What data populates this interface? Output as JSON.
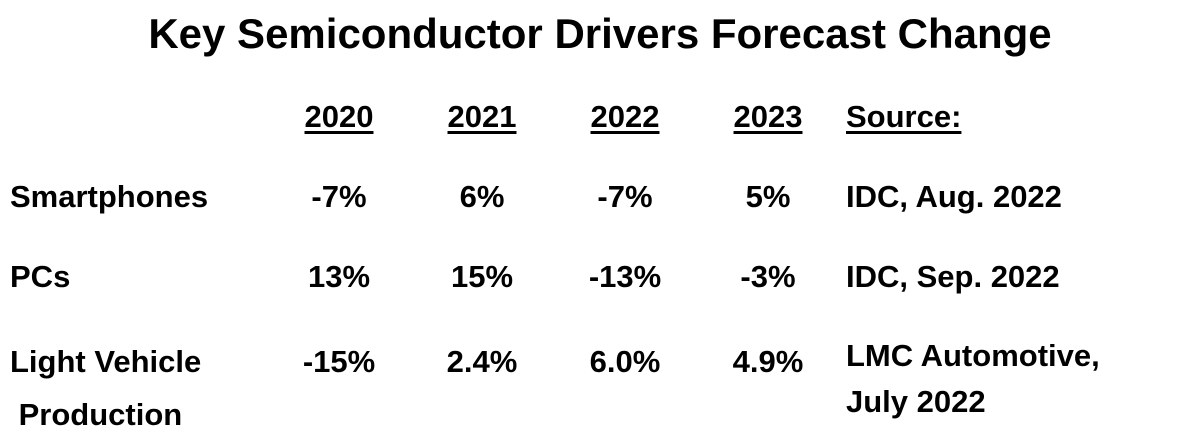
{
  "title": "Key Semiconductor Drivers Forecast Change",
  "headers": {
    "y2020": "2020",
    "y2021": "2021",
    "y2022": "2022",
    "y2023": "2023",
    "source": "Source:"
  },
  "rows": [
    {
      "label": "Smartphones",
      "y2020": "-7%",
      "y2021": "6%",
      "y2022": "-7%",
      "y2023": "5%",
      "source": "IDC, Aug. 2022"
    },
    {
      "label": "PCs",
      "y2020": "13%",
      "y2021": "15%",
      "y2022": "-13%",
      "y2023": "-3%",
      "source": "IDC, Sep. 2022"
    },
    {
      "label_line1": "Light Vehicle",
      "label_line2": " Production",
      "y2020": "-15%",
      "y2021": "2.4%",
      "y2022": "6.0%",
      "y2023": "4.9%",
      "source_line1": "LMC Automotive,",
      "source_line2": "July 2022"
    }
  ]
}
